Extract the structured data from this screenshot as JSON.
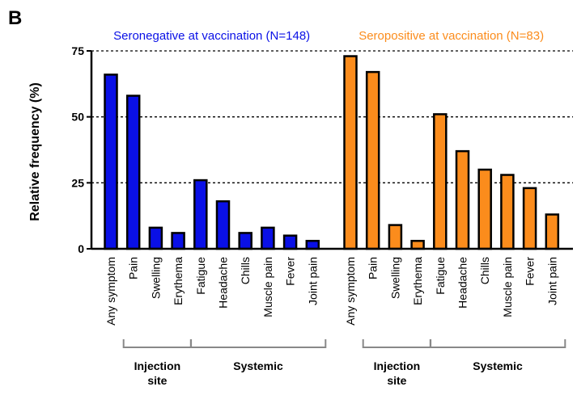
{
  "chart_data": {
    "type": "bar",
    "panel_label": "B",
    "ylabel": "Relative frequency (%)",
    "ylim": [
      0,
      75
    ],
    "yticks": [
      0,
      25,
      50,
      75
    ],
    "grid": true,
    "groups": [
      {
        "name": "Seronegative at vaccination (N=148)",
        "color": "#0a10e6",
        "categories": [
          "Any symptom",
          "Pain",
          "Swelling",
          "Erythema",
          "Fatigue",
          "Headache",
          "Chills",
          "Muscle pain",
          "Fever",
          "Joint pain"
        ],
        "values": [
          66,
          58,
          8,
          6,
          26,
          18,
          6,
          8,
          5,
          3
        ],
        "brackets": [
          {
            "label": "Injection site",
            "span": [
              1,
              3
            ]
          },
          {
            "label": "Systemic",
            "span": [
              4,
              9
            ]
          }
        ]
      },
      {
        "name": "Seropositive at vaccination (N=83)",
        "color": "#fb8c1c",
        "categories": [
          "Any symptom",
          "Pain",
          "Swelling",
          "Erythema",
          "Fatigue",
          "Headache",
          "Chills",
          "Muscle pain",
          "Fever",
          "Joint pain"
        ],
        "values": [
          73,
          67,
          9,
          3,
          51,
          37,
          30,
          28,
          23,
          13
        ],
        "brackets": [
          {
            "label": "Injection site",
            "span": [
              1,
              3
            ]
          },
          {
            "label": "Systemic",
            "span": [
              4,
              9
            ]
          }
        ]
      }
    ]
  }
}
